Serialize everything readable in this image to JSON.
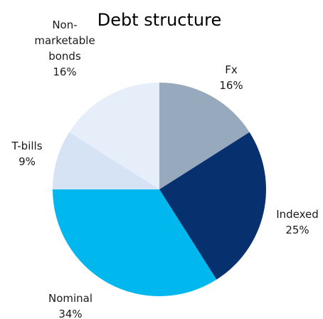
{
  "chart_data": {
    "type": "pie",
    "title": "Debt structure",
    "start_angle_deg": 0,
    "direction": "clockwise",
    "slices": [
      {
        "label_lines": [
          "Fx"
        ],
        "value": 16,
        "value_label": "16%",
        "color": "#97a9bd"
      },
      {
        "label_lines": [
          "Indexed"
        ],
        "value": 25,
        "value_label": "25%",
        "color": "#06306e"
      },
      {
        "label_lines": [
          "Nominal"
        ],
        "value": 34,
        "value_label": "34%",
        "color": "#00b8ee"
      },
      {
        "label_lines": [
          "T-bills"
        ],
        "value": 9,
        "value_label": "9%",
        "color": "#d5e3f5"
      },
      {
        "label_lines": [
          "Non-",
          "marketable",
          "bonds"
        ],
        "value": 16,
        "value_label": "16%",
        "color": "#e6eef9"
      }
    ]
  }
}
